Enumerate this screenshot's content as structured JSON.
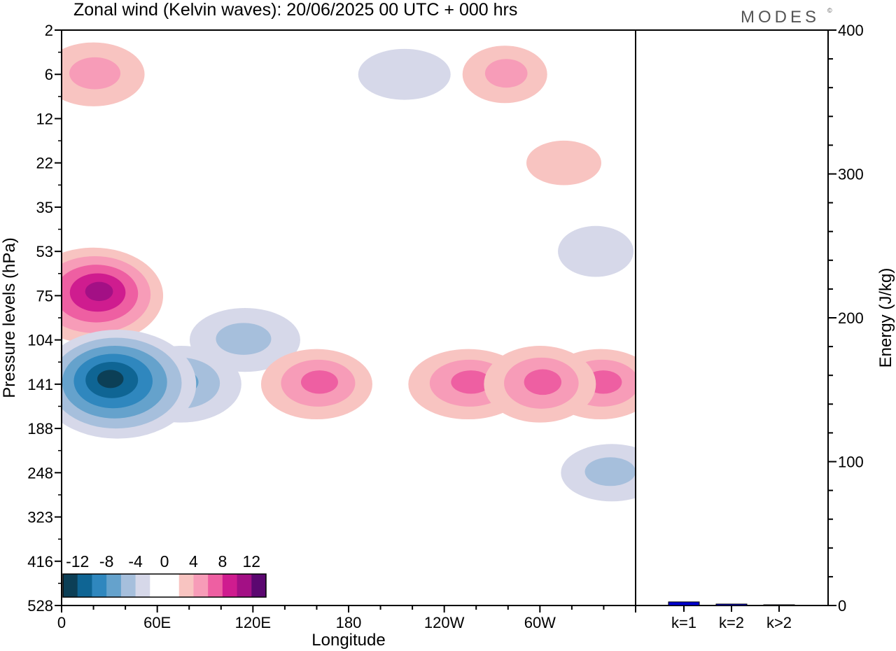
{
  "header": {
    "title": "Zonal wind (Kelvin waves):  20/06/2025  00 UTC  + 000 hrs",
    "logo": "MODES",
    "logo_mark": "©"
  },
  "chart_data": [
    {
      "type": "heatmap",
      "title": "Zonal wind (Kelvin waves):  20/06/2025  00 UTC  + 000 hrs",
      "xlabel": "Longitude",
      "ylabel": "Pressure levels (hPa)",
      "x_ticks": [
        "0",
        "60E",
        "120E",
        "180",
        "120W",
        "60W"
      ],
      "x_tick_degrees": [
        0,
        60,
        120,
        180,
        240,
        300
      ],
      "xlim": [
        0,
        360
      ],
      "y_ticks": [
        "2",
        "6",
        "12",
        "22",
        "35",
        "53",
        "75",
        "104",
        "141",
        "188",
        "248",
        "323",
        "416",
        "528"
      ],
      "y_scale": "pressure levels (top = 2 hPa, bottom = 528 hPa)",
      "levels": [
        -12,
        -10,
        -8,
        -6,
        -4,
        -2,
        0,
        2,
        4,
        6,
        8,
        10,
        12
      ],
      "colorbar_labels": [
        "-12",
        "-8",
        "-4",
        "0",
        "4",
        "8",
        "12"
      ],
      "colorbar_label_values": [
        -12,
        -8,
        -4,
        0,
        4,
        8,
        12
      ],
      "colorbar_colors": [
        "#0c3f56",
        "#0f6594",
        "#2f87be",
        "#65a2cc",
        "#a6bfdc",
        "#d6d8e9",
        "#ffffff",
        "#ffffff",
        "#f8c4c1",
        "#f79cb8",
        "#ee5fa2",
        "#cf1c8f",
        "#a31085",
        "#5b0770"
      ],
      "features": [
        {
          "sign": "negative",
          "peak": -13,
          "lon_center": 35,
          "level_center": "141"
        },
        {
          "sign": "negative",
          "peak": -8,
          "lon_center": 75,
          "level_center": "141"
        },
        {
          "sign": "negative",
          "peak": -6,
          "lon_center": 115,
          "level_center": "104"
        },
        {
          "sign": "positive",
          "peak": 11,
          "lon_center": 20,
          "level_center": "75"
        },
        {
          "sign": "positive",
          "peak": 7,
          "lon_center": 160,
          "level_center": "141"
        },
        {
          "sign": "positive",
          "peak": 7,
          "lon_center": 255,
          "level_center": "141"
        },
        {
          "sign": "positive",
          "peak": 8,
          "lon_center": 300,
          "level_center": "141"
        },
        {
          "sign": "positive",
          "peak": 7,
          "lon_center": 338,
          "level_center": "141"
        },
        {
          "sign": "negative",
          "peak": -5,
          "lon_center": 345,
          "level_center": "248"
        },
        {
          "sign": "negative",
          "peak": -4,
          "lon_center": 335,
          "level_center": "53"
        },
        {
          "sign": "positive",
          "peak": 6,
          "lon_center": 20,
          "level_center": "6"
        },
        {
          "sign": "negative",
          "peak": -4,
          "lon_center": 215,
          "level_center": "6"
        },
        {
          "sign": "positive",
          "peak": 5,
          "lon_center": 278,
          "level_center": "6"
        },
        {
          "sign": "positive",
          "peak": 3,
          "lon_center": 315,
          "level_center": "22"
        }
      ]
    },
    {
      "type": "bar",
      "ylabel": "Energy (J/kg)",
      "categories": [
        "k=1",
        "k=2",
        "k>2"
      ],
      "values": [
        2.5,
        1.0,
        0.5
      ],
      "ylim": [
        0,
        400
      ],
      "y_ticks": [
        "0",
        "100",
        "200",
        "300",
        "400"
      ],
      "y_tick_values": [
        0,
        100,
        200,
        300,
        400
      ],
      "colors": {
        "bar_fill": "#0000cc"
      }
    }
  ]
}
